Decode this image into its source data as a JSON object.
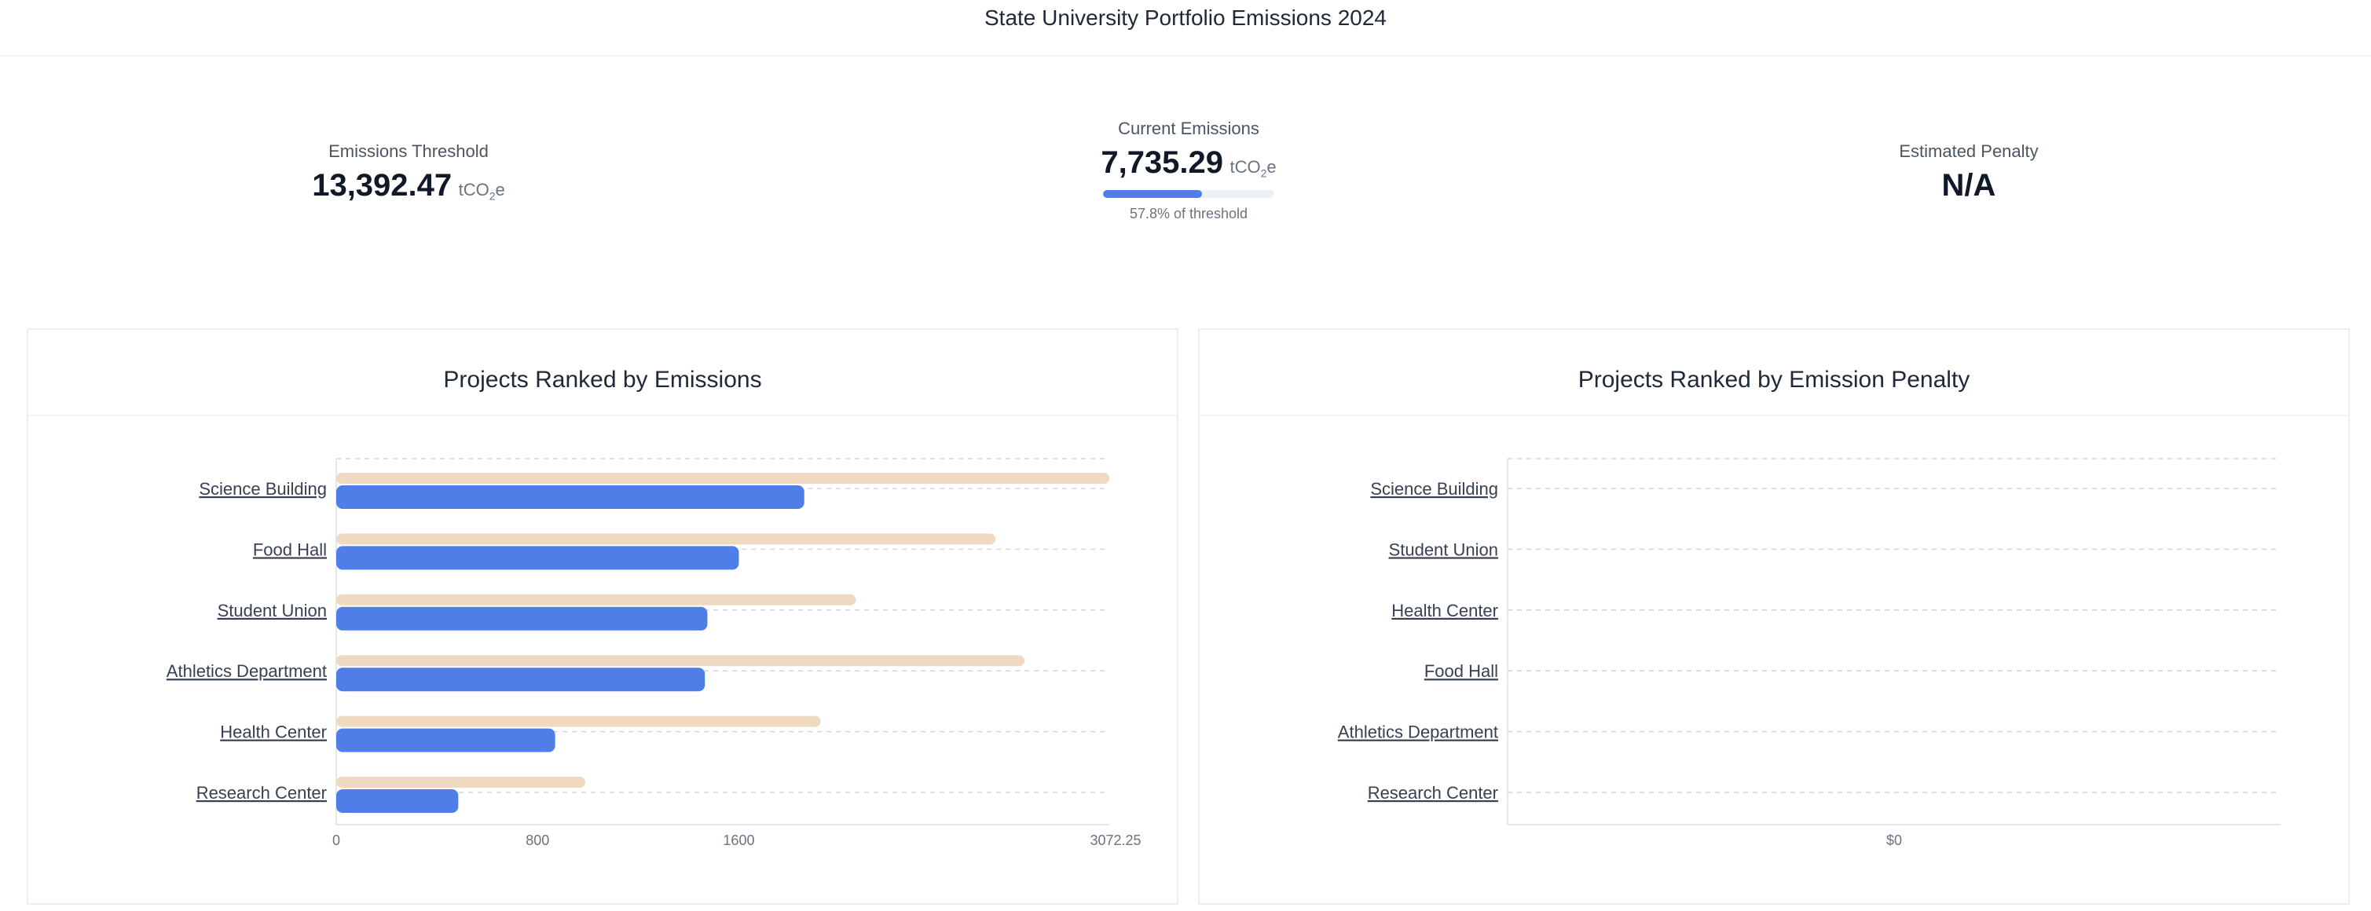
{
  "header": {
    "title": "State University Portfolio Emissions 2024"
  },
  "kpis": {
    "threshold": {
      "label": "Emissions Threshold",
      "value": "13,392.47",
      "unit_prefix": "tCO",
      "unit_sub": "2",
      "unit_suffix": "e"
    },
    "current": {
      "label": "Current Emissions",
      "value": "7,735.29",
      "unit_prefix": "tCO",
      "unit_sub": "2",
      "unit_suffix": "e",
      "progress_fraction": 0.578,
      "progress_text": "57.8% of threshold"
    },
    "penalty": {
      "label": "Estimated Penalty",
      "value": "N/A"
    }
  },
  "colors": {
    "emissions_bar": "#4f7ee8",
    "threshold_bar": "#f0d9c1",
    "grid": "#d1d5db"
  },
  "panels": {
    "emissions": {
      "title": "Projects Ranked by Emissions"
    },
    "penalty": {
      "title": "Projects Ranked by Emission Penalty"
    }
  },
  "chart_data": [
    {
      "type": "bar",
      "orientation": "horizontal",
      "title": "Projects Ranked by Emissions",
      "categories": [
        "Science Building",
        "Food Hall",
        "Student Union",
        "Athletics Department",
        "Health Center",
        "Research Center"
      ],
      "series": [
        {
          "values": [
            3072.25,
            2620,
            2065,
            2735,
            1925,
            990
          ]
        },
        {
          "values": [
            1860,
            1600,
            1475,
            1465,
            870,
            485
          ]
        }
      ],
      "xlim": [
        0,
        3072.25
      ],
      "xticks": [
        "0",
        "800",
        "1600",
        "3072.25"
      ],
      "xtick_values": [
        0,
        800,
        1600,
        3072.25
      ],
      "grid": true
    },
    {
      "type": "bar",
      "orientation": "horizontal",
      "title": "Projects Ranked by Emission Penalty",
      "categories": [
        "Science Building",
        "Student Union",
        "Health Center",
        "Food Hall",
        "Athletics Department",
        "Research Center"
      ],
      "series": [],
      "xticks": [
        "$0"
      ],
      "grid": true
    }
  ]
}
